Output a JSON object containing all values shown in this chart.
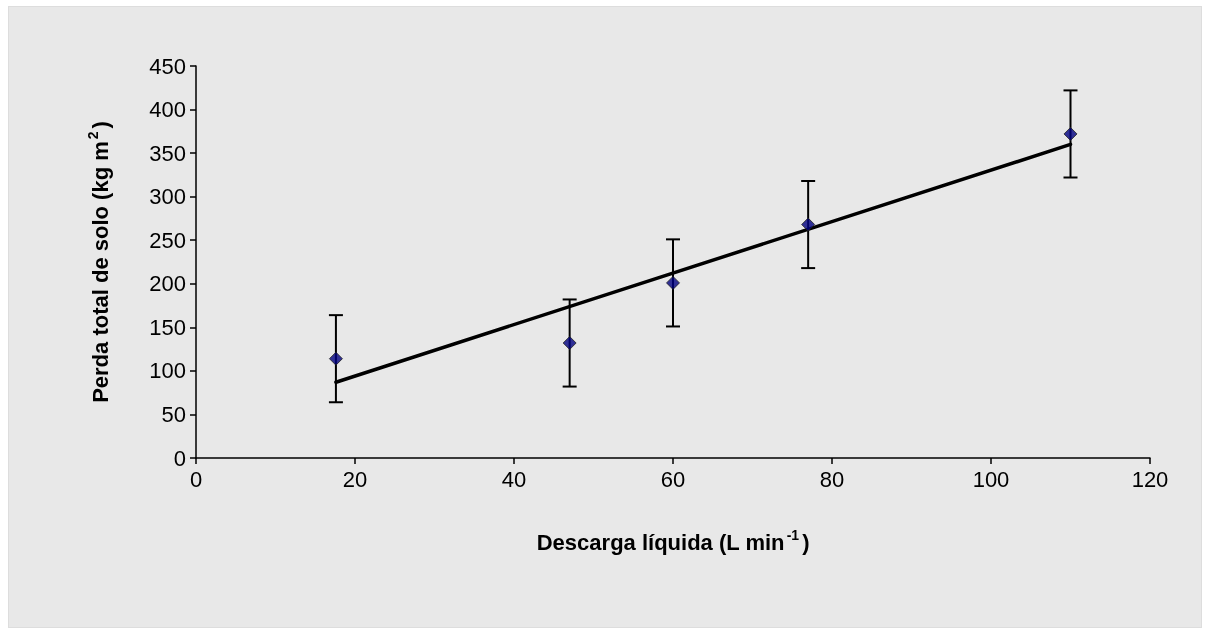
{
  "chart_data": {
    "type": "scatter",
    "xlabel": "Descarga líquida (L min$^{-1}$)",
    "ylabel": "Perda total de solo (kg m$^{2}$)",
    "xlim": [
      0,
      120
    ],
    "xticks": [
      0,
      20,
      40,
      60,
      80,
      100,
      120
    ],
    "ylim": [
      0,
      450
    ],
    "yticks": [
      0,
      50,
      100,
      150,
      200,
      250,
      300,
      350,
      400,
      450
    ],
    "grid": false,
    "series": [
      {
        "color": "#000080",
        "marker": "diamond",
        "x": [
          17.6,
          47,
          60,
          77,
          110
        ],
        "values": [
          114,
          132,
          201,
          268,
          372
        ],
        "errors": [
          50,
          50,
          50,
          50,
          50
        ]
      },
      {
        "type": "line",
        "color": "#000000",
        "marker": "none",
        "x": [
          17.6,
          110
        ],
        "values": [
          87,
          360
        ]
      }
    ]
  }
}
